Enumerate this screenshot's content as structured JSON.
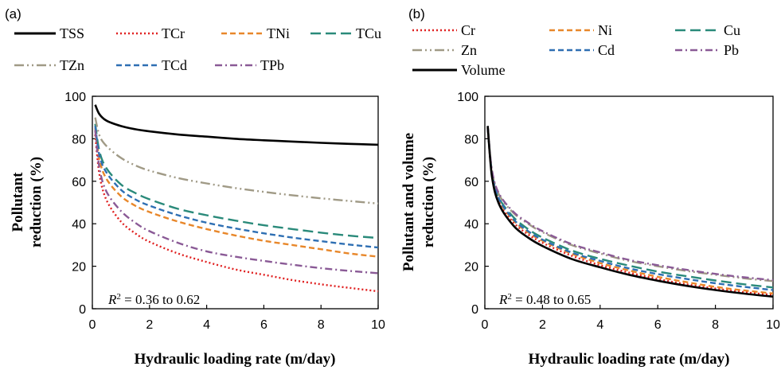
{
  "figure": {
    "panels": [
      {
        "id": "a",
        "label": "(a)",
        "xlabel": "Hydraulic loading rate (m/day)",
        "ylabel_lines": [
          "Pollutant",
          "reduction (%)"
        ],
        "annotation": {
          "prefix": "R",
          "sup": "2",
          "rest": " = 0.36 to 0.62"
        },
        "xticks": [
          "0",
          "2",
          "4",
          "6",
          "8",
          "10"
        ],
        "yticks": [
          "0",
          "20",
          "40",
          "60",
          "80",
          "100"
        ]
      },
      {
        "id": "b",
        "label": "(b)",
        "xlabel": "Hydraulic loading rate (m/day)",
        "ylabel_lines": [
          "Pollutant  and volume",
          "reduction (%)"
        ],
        "annotation": {
          "prefix": "R",
          "sup": "2",
          "rest": " = 0.48 to 0.65"
        },
        "xticks": [
          "0",
          "2",
          "4",
          "6",
          "8",
          "10"
        ],
        "yticks": [
          "0",
          "20",
          "40",
          "60",
          "80",
          "100"
        ]
      }
    ]
  },
  "chart_data": [
    {
      "type": "line",
      "panel": "(a)",
      "xlabel": "Hydraulic loading rate (m/day)",
      "ylabel": "Pollutant reduction (%)",
      "xlim": [
        0,
        10
      ],
      "ylim": [
        0,
        100
      ],
      "grid": false,
      "legend_position": "top",
      "annotation": "R2 = 0.36 to 0.62",
      "x": [
        0.1,
        0.25,
        0.5,
        1,
        1.5,
        2,
        3,
        4,
        5,
        6,
        7,
        8,
        9,
        10
      ],
      "series": [
        {
          "name": "TSS",
          "color": "#000000",
          "dash": "solid",
          "values": [
            96,
            91.5,
            88.5,
            86,
            84.5,
            83.5,
            82,
            81,
            80,
            79.3,
            78.7,
            78.1,
            77.6,
            77.2
          ]
        },
        {
          "name": "TCr",
          "color": "#e02020",
          "dash": "dot",
          "values": [
            82,
            63,
            51,
            41,
            35.5,
            31.5,
            26,
            22,
            18.5,
            16,
            13.5,
            11.5,
            9.8,
            8.2
          ]
        },
        {
          "name": "TNi",
          "color": "#e8872a",
          "dash": "dash",
          "values": [
            85,
            70,
            61,
            53,
            48.5,
            45.5,
            41,
            37.5,
            34.5,
            32,
            30,
            28,
            26,
            24.5
          ]
        },
        {
          "name": "TCu",
          "color": "#2a8a7a",
          "dash": "longdash",
          "values": [
            87,
            74,
            66,
            58.5,
            54.5,
            51.5,
            47,
            44,
            41.5,
            39.3,
            37.5,
            35.8,
            34.4,
            33.3
          ]
        },
        {
          "name": "TZn",
          "color": "#a09a86",
          "dash": "dashdotdot",
          "values": [
            90,
            81.5,
            76.5,
            71,
            67.5,
            65,
            61.5,
            59,
            56.8,
            55,
            53.4,
            52,
            50.7,
            49.5
          ]
        },
        {
          "name": "TCd",
          "color": "#2e6fb3",
          "dash": "dash",
          "values": [
            86,
            72,
            64,
            56,
            51.5,
            48.5,
            44,
            40.5,
            37.8,
            35.5,
            33.5,
            31.8,
            30.2,
            28.8
          ]
        },
        {
          "name": "TPb",
          "color": "#8a5a96",
          "dash": "dashdot",
          "values": [
            84,
            66,
            55,
            46,
            40.5,
            36.5,
            31,
            27,
            24.5,
            22.5,
            20.7,
            19.1,
            17.8,
            16.7
          ]
        }
      ]
    },
    {
      "type": "line",
      "panel": "(b)",
      "xlabel": "Hydraulic loading rate (m/day)",
      "ylabel": "Pollutant and volume reduction (%)",
      "xlim": [
        0,
        10
      ],
      "ylim": [
        0,
        100
      ],
      "grid": false,
      "legend_position": "top",
      "annotation": "R2 = 0.48 to 0.65",
      "x": [
        0.1,
        0.25,
        0.5,
        1,
        1.5,
        2,
        3,
        4,
        5,
        6,
        7,
        8,
        9,
        10
      ],
      "series": [
        {
          "name": "Cr",
          "color": "#e02020",
          "dash": "dot",
          "values": [
            85,
            63,
            50,
            40.5,
            35,
            31,
            25,
            20.5,
            17,
            14,
            11.5,
            9.5,
            7.8,
            6.5
          ]
        },
        {
          "name": "Ni",
          "color": "#e8872a",
          "dash": "dash",
          "values": [
            85,
            63.5,
            51,
            41.5,
            36,
            32,
            26,
            21.5,
            18,
            15,
            12.5,
            10.3,
            8.6,
            7.2
          ]
        },
        {
          "name": "Cu",
          "color": "#2a8a7a",
          "dash": "longdash",
          "values": [
            86,
            64,
            52,
            43,
            37.5,
            33.5,
            27.5,
            23.5,
            20.3,
            17.5,
            15.3,
            13.3,
            11.5,
            10
          ]
        },
        {
          "name": "Zn",
          "color": "#a09a86",
          "dash": "dashdotdot",
          "values": [
            86,
            65,
            53.5,
            45,
            40,
            36,
            30,
            26,
            22.5,
            20,
            17.8,
            16,
            14.3,
            13
          ]
        },
        {
          "name": "Cd",
          "color": "#2e6fb3",
          "dash": "dash",
          "values": [
            85,
            63.5,
            51.5,
            42,
            36.5,
            32.5,
            26.5,
            22.5,
            19,
            16.3,
            14,
            12,
            10.3,
            8.8
          ]
        },
        {
          "name": "Pb",
          "color": "#8a5a96",
          "dash": "dashdot",
          "values": [
            86,
            65,
            54,
            45.5,
            40.5,
            36.5,
            30.5,
            26.5,
            23,
            20.5,
            18.3,
            16.4,
            14.8,
            13.5
          ]
        },
        {
          "name": "Volume",
          "color": "#000000",
          "dash": "solid",
          "values": [
            86,
            62,
            49,
            39,
            33.5,
            29.5,
            23.5,
            19.5,
            16,
            13.2,
            10.8,
            8.8,
            7.1,
            5.7
          ]
        }
      ]
    }
  ]
}
